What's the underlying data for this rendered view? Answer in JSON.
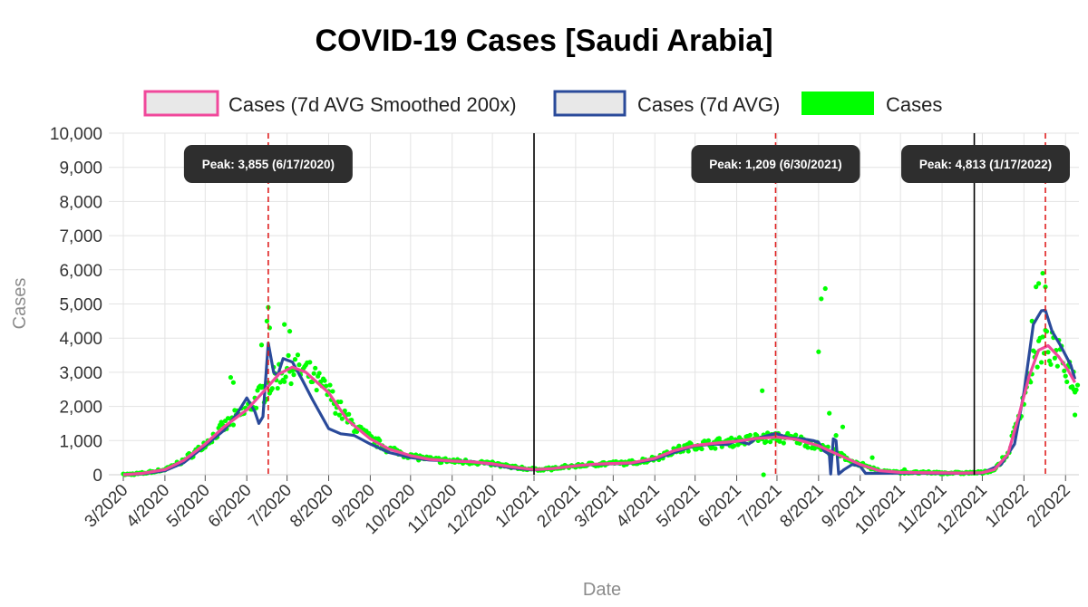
{
  "chart_data": {
    "type": "line",
    "title": "COVID-19 Cases [Saudi Arabia]",
    "xlabel": "Date",
    "ylabel": "Cases",
    "ylim": [
      0,
      10000
    ],
    "y_ticks": [
      0,
      1000,
      2000,
      3000,
      4000,
      5000,
      6000,
      7000,
      8000,
      9000,
      10000
    ],
    "y_tick_labels": [
      "0",
      "1,000",
      "2,000",
      "3,000",
      "4,000",
      "5,000",
      "6,000",
      "7,000",
      "8,000",
      "9,000",
      "10,000"
    ],
    "x_range": [
      "2020-03-01",
      "2022-02-10"
    ],
    "x_ticks": [
      "2020-03-01",
      "2020-04-01",
      "2020-05-01",
      "2020-06-01",
      "2020-07-01",
      "2020-08-01",
      "2020-09-01",
      "2020-10-01",
      "2020-11-01",
      "2020-12-01",
      "2021-01-01",
      "2021-02-01",
      "2021-03-01",
      "2021-04-01",
      "2021-05-01",
      "2021-06-01",
      "2021-07-01",
      "2021-08-01",
      "2021-09-01",
      "2021-10-01",
      "2021-11-01",
      "2021-12-01",
      "2022-01-01",
      "2022-02-01"
    ],
    "x_tick_labels": [
      "3/2020",
      "4/2020",
      "5/2020",
      "6/2020",
      "7/2020",
      "8/2020",
      "9/2020",
      "10/2020",
      "11/2020",
      "12/2020",
      "1/2021",
      "2/2021",
      "3/2021",
      "4/2021",
      "5/2021",
      "6/2021",
      "7/2021",
      "8/2021",
      "9/2021",
      "10/2021",
      "11/2021",
      "12/2021",
      "1/2022",
      "2/2022"
    ],
    "grid": true,
    "legend_position": "top",
    "vertical_lines": [
      "2021-01-01",
      "2021-11-25"
    ],
    "peaks": [
      {
        "date": "2020-06-17",
        "label": "Peak: 3,855 (6/17/2020)"
      },
      {
        "date": "2021-06-30",
        "label": "Peak: 1,209 (6/30/2021)"
      },
      {
        "date": "2022-01-17",
        "label": "Peak: 4,813 (1/17/2022)"
      }
    ],
    "series": [
      {
        "name": "Cases (7d AVG Smoothed 200x)",
        "color": "#f0489b",
        "style": "line",
        "points": [
          [
            "2020-03-01",
            0
          ],
          [
            "2020-03-15",
            40
          ],
          [
            "2020-04-01",
            150
          ],
          [
            "2020-04-15",
            420
          ],
          [
            "2020-05-01",
            900
          ],
          [
            "2020-05-15",
            1400
          ],
          [
            "2020-06-01",
            1900
          ],
          [
            "2020-06-15",
            2500
          ],
          [
            "2020-06-25",
            2950
          ],
          [
            "2020-07-05",
            3150
          ],
          [
            "2020-07-15",
            3000
          ],
          [
            "2020-08-01",
            2400
          ],
          [
            "2020-08-15",
            1600
          ],
          [
            "2020-09-01",
            1050
          ],
          [
            "2020-09-15",
            750
          ],
          [
            "2020-10-01",
            560
          ],
          [
            "2020-10-15",
            450
          ],
          [
            "2020-11-01",
            400
          ],
          [
            "2020-11-15",
            380
          ],
          [
            "2020-12-01",
            320
          ],
          [
            "2020-12-15",
            230
          ],
          [
            "2021-01-01",
            150
          ],
          [
            "2021-01-15",
            180
          ],
          [
            "2021-02-01",
            260
          ],
          [
            "2021-02-15",
            310
          ],
          [
            "2021-03-01",
            330
          ],
          [
            "2021-03-15",
            350
          ],
          [
            "2021-04-01",
            480
          ],
          [
            "2021-04-15",
            700
          ],
          [
            "2021-05-01",
            860
          ],
          [
            "2021-05-15",
            920
          ],
          [
            "2021-06-01",
            980
          ],
          [
            "2021-06-15",
            1060
          ],
          [
            "2021-07-01",
            1100
          ],
          [
            "2021-07-15",
            1040
          ],
          [
            "2021-08-01",
            850
          ],
          [
            "2021-08-15",
            600
          ],
          [
            "2021-09-01",
            300
          ],
          [
            "2021-09-15",
            120
          ],
          [
            "2021-10-01",
            70
          ],
          [
            "2021-10-15",
            60
          ],
          [
            "2021-11-01",
            55
          ],
          [
            "2021-11-15",
            50
          ],
          [
            "2021-12-01",
            60
          ],
          [
            "2021-12-10",
            150
          ],
          [
            "2021-12-20",
            600
          ],
          [
            "2021-12-28",
            1700
          ],
          [
            "2022-01-05",
            2900
          ],
          [
            "2022-01-12",
            3650
          ],
          [
            "2022-01-19",
            3780
          ],
          [
            "2022-01-27",
            3450
          ],
          [
            "2022-02-03",
            3050
          ],
          [
            "2022-02-08",
            2700
          ]
        ]
      },
      {
        "name": "Cases (7d AVG)",
        "color": "#2a4a9a",
        "style": "line",
        "points": [
          [
            "2020-03-01",
            0
          ],
          [
            "2020-03-15",
            30
          ],
          [
            "2020-04-01",
            120
          ],
          [
            "2020-04-15",
            350
          ],
          [
            "2020-05-01",
            850
          ],
          [
            "2020-05-15",
            1300
          ],
          [
            "2020-05-25",
            1800
          ],
          [
            "2020-06-01",
            2250
          ],
          [
            "2020-06-07",
            1850
          ],
          [
            "2020-06-10",
            1500
          ],
          [
            "2020-06-13",
            1700
          ],
          [
            "2020-06-17",
            3855
          ],
          [
            "2020-06-21",
            3000
          ],
          [
            "2020-06-24",
            2900
          ],
          [
            "2020-06-28",
            3400
          ],
          [
            "2020-07-05",
            3300
          ],
          [
            "2020-07-12",
            2800
          ],
          [
            "2020-07-20",
            2200
          ],
          [
            "2020-08-01",
            1350
          ],
          [
            "2020-08-10",
            1200
          ],
          [
            "2020-08-20",
            1150
          ],
          [
            "2020-09-01",
            900
          ],
          [
            "2020-09-15",
            650
          ],
          [
            "2020-10-01",
            500
          ],
          [
            "2020-10-15",
            430
          ],
          [
            "2020-11-01",
            400
          ],
          [
            "2020-11-15",
            390
          ],
          [
            "2020-12-01",
            300
          ],
          [
            "2020-12-15",
            200
          ],
          [
            "2021-01-01",
            140
          ],
          [
            "2021-01-15",
            180
          ],
          [
            "2021-02-01",
            260
          ],
          [
            "2021-02-15",
            300
          ],
          [
            "2021-03-01",
            320
          ],
          [
            "2021-03-15",
            340
          ],
          [
            "2021-04-01",
            450
          ],
          [
            "2021-04-15",
            650
          ],
          [
            "2021-05-01",
            850
          ],
          [
            "2021-05-15",
            900
          ],
          [
            "2021-05-25",
            880
          ],
          [
            "2021-06-01",
            1000
          ],
          [
            "2021-06-10",
            900
          ],
          [
            "2021-06-15",
            1050
          ],
          [
            "2021-06-30",
            1209
          ],
          [
            "2021-07-10",
            1080
          ],
          [
            "2021-07-20",
            1050
          ],
          [
            "2021-07-28",
            1000
          ],
          [
            "2021-08-01",
            950
          ],
          [
            "2021-08-05",
            700
          ],
          [
            "2021-08-09",
            600
          ],
          [
            "2021-08-10",
            20
          ],
          [
            "2021-08-12",
            1050
          ],
          [
            "2021-08-14",
            1000
          ],
          [
            "2021-08-16",
            20
          ],
          [
            "2021-08-20",
            150
          ],
          [
            "2021-08-26",
            300
          ],
          [
            "2021-09-01",
            250
          ],
          [
            "2021-09-05",
            40
          ],
          [
            "2021-10-01",
            50
          ],
          [
            "2021-11-01",
            40
          ],
          [
            "2021-12-01",
            50
          ],
          [
            "2021-12-15",
            300
          ],
          [
            "2021-12-25",
            900
          ],
          [
            "2022-01-01",
            2400
          ],
          [
            "2022-01-08",
            4400
          ],
          [
            "2022-01-14",
            4800
          ],
          [
            "2022-01-17",
            4813
          ],
          [
            "2022-01-22",
            4200
          ],
          [
            "2022-01-28",
            3800
          ],
          [
            "2022-02-05",
            3200
          ],
          [
            "2022-02-08",
            2800
          ]
        ]
      },
      {
        "name": "Cases",
        "color": "#00ff00",
        "style": "points",
        "outliers": [
          [
            "2020-06-17",
            4900
          ],
          [
            "2020-06-16",
            4500
          ],
          [
            "2020-06-18",
            4300
          ],
          [
            "2020-06-29",
            4400
          ],
          [
            "2020-07-03",
            4200
          ],
          [
            "2020-06-12",
            3800
          ],
          [
            "2020-05-20",
            2850
          ],
          [
            "2020-05-22",
            2700
          ],
          [
            "2021-06-20",
            2460
          ],
          [
            "2021-06-21",
            0
          ],
          [
            "2021-08-01",
            3600
          ],
          [
            "2021-08-03",
            5150
          ],
          [
            "2021-08-06",
            5450
          ],
          [
            "2021-08-09",
            1800
          ],
          [
            "2021-08-14",
            1150
          ],
          [
            "2021-08-19",
            1400
          ],
          [
            "2021-09-10",
            500
          ],
          [
            "2021-10-04",
            150
          ],
          [
            "2022-01-15",
            5900
          ],
          [
            "2022-01-12",
            5600
          ],
          [
            "2022-01-10",
            5500
          ],
          [
            "2022-01-17",
            5500
          ],
          [
            "2022-01-07",
            4500
          ],
          [
            "2022-02-08",
            1750
          ],
          [
            "2022-02-07",
            2500
          ],
          [
            "2022-02-04",
            3300
          ]
        ]
      }
    ]
  }
}
